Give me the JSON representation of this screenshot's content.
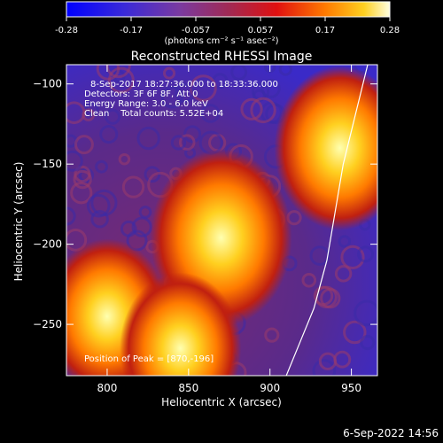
{
  "chart_data": {
    "type": "heatmap",
    "title": "Reconstructed RHESSI Image",
    "xlabel": "Heliocentric X (arcsec)",
    "ylabel": "Heliocentric Y (arcsec)",
    "xlim": [
      775,
      966
    ],
    "ylim": [
      -282,
      -88
    ],
    "x_ticks": [
      800,
      850,
      900,
      950
    ],
    "y_ticks": [
      -250,
      -200,
      -150,
      -100
    ],
    "colorbar": {
      "range": [
        -0.28,
        0.28
      ],
      "ticks": [
        "-0.28",
        "-0.17",
        "-0.057",
        "0.057",
        "0.17",
        "0.28"
      ],
      "label": "(photons cm⁻² s⁻¹ asec⁻²)"
    },
    "annotations": {
      "time": "8-Sep-2017 18:27:36.000 to 18:33:36.000",
      "detectors": "Detectors: 3F 6F 8F, Att 0",
      "energy": "Energy Range: 3.0 - 6.0 keV",
      "clean": "Clean    Total counts: 5.52E+04",
      "peak": "Position of Peak = [870,-196]"
    },
    "sources": [
      {
        "x": 870,
        "y": -196,
        "intensity": 0.28
      },
      {
        "x": 943,
        "y": -140,
        "intensity": 0.24
      },
      {
        "x": 800,
        "y": -245,
        "intensity": 0.21
      },
      {
        "x": 845,
        "y": -265,
        "intensity": 0.2
      }
    ],
    "limb_line": [
      [
        910,
        -282
      ],
      [
        927,
        -240
      ],
      [
        935,
        -210
      ],
      [
        945,
        -150
      ],
      [
        960,
        -88
      ]
    ],
    "footer_date": "6-Sep-2022 14:56"
  }
}
